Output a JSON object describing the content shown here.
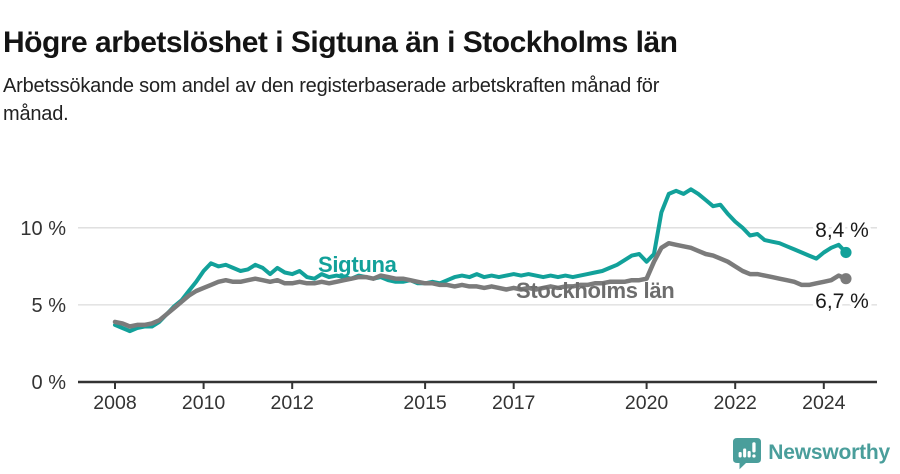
{
  "header": {
    "title": "Högre arbetslöshet i Sigtuna än i Stockholms län",
    "subtitle_lines": [
      "Arbetssökande som andel av den registerbaserade arbetskraften månad för",
      "månad."
    ]
  },
  "chart_data": {
    "type": "line",
    "title": "Högre arbetslöshet i Sigtuna än i Stockholms län",
    "xlabel": "",
    "ylabel": "",
    "unit": "%",
    "x_start": 2008,
    "x_step_years": 0.166667,
    "xlim": [
      2007.2,
      2025.2
    ],
    "ylim": [
      0,
      14
    ],
    "grid": "horizontal-y",
    "legend_position": "inline-labels",
    "x_ticks": [
      2008,
      2010,
      2012,
      2015,
      2017,
      2020,
      2022,
      2024
    ],
    "y_ticks": [
      0,
      5,
      10
    ],
    "y_tick_labels": [
      "0 %",
      "5 %",
      "10 %"
    ],
    "axis_color": "#333333",
    "grid_color": "#dcdcdc",
    "tick_label_color": "#333333",
    "end_label_color": "#1a1a1a",
    "series": [
      {
        "name": "Sigtuna",
        "color": "#12a19a",
        "end_label": "8,4 %",
        "end_value": 8.4,
        "values": [
          3.7,
          3.5,
          3.3,
          3.5,
          3.6,
          3.6,
          3.9,
          4.4,
          4.9,
          5.3,
          5.9,
          6.5,
          7.2,
          7.7,
          7.5,
          7.6,
          7.4,
          7.2,
          7.3,
          7.6,
          7.4,
          7.0,
          7.4,
          7.1,
          7.0,
          7.2,
          6.8,
          6.7,
          7.0,
          6.8,
          6.9,
          6.8,
          6.7,
          6.9,
          6.8,
          6.7,
          6.8,
          6.6,
          6.5,
          6.5,
          6.6,
          6.4,
          6.4,
          6.5,
          6.4,
          6.6,
          6.8,
          6.9,
          6.8,
          7.0,
          6.8,
          6.9,
          6.8,
          6.9,
          7.0,
          6.9,
          7.0,
          6.9,
          6.8,
          6.9,
          6.8,
          6.9,
          6.8,
          6.9,
          7.0,
          7.1,
          7.2,
          7.4,
          7.6,
          7.9,
          8.2,
          8.3,
          7.8,
          8.3,
          11.0,
          12.2,
          12.4,
          12.2,
          12.5,
          12.2,
          11.8,
          11.4,
          11.5,
          10.9,
          10.4,
          10.0,
          9.5,
          9.6,
          9.2,
          9.1,
          9.0,
          8.8,
          8.6,
          8.4,
          8.2,
          8.0,
          8.4,
          8.7,
          8.9,
          8.4
        ]
      },
      {
        "name": "Stockholms län",
        "color": "#7b7b7b",
        "label_color": "#6d6d6d",
        "end_label": "6,7 %",
        "end_value": 6.7,
        "values": [
          3.9,
          3.8,
          3.6,
          3.7,
          3.7,
          3.8,
          4.0,
          4.4,
          4.8,
          5.2,
          5.6,
          5.9,
          6.1,
          6.3,
          6.5,
          6.6,
          6.5,
          6.5,
          6.6,
          6.7,
          6.6,
          6.5,
          6.6,
          6.4,
          6.4,
          6.5,
          6.4,
          6.4,
          6.5,
          6.4,
          6.5,
          6.6,
          6.7,
          6.8,
          6.8,
          6.7,
          6.9,
          6.8,
          6.7,
          6.7,
          6.6,
          6.5,
          6.4,
          6.4,
          6.3,
          6.3,
          6.2,
          6.3,
          6.2,
          6.2,
          6.1,
          6.2,
          6.1,
          6.0,
          6.1,
          6.0,
          6.1,
          6.0,
          6.1,
          6.2,
          6.1,
          6.2,
          6.2,
          6.3,
          6.3,
          6.4,
          6.4,
          6.5,
          6.5,
          6.5,
          6.6,
          6.6,
          6.7,
          7.8,
          8.7,
          9.0,
          8.9,
          8.8,
          8.7,
          8.5,
          8.3,
          8.2,
          8.0,
          7.8,
          7.5,
          7.2,
          7.0,
          7.0,
          6.9,
          6.8,
          6.7,
          6.6,
          6.5,
          6.3,
          6.3,
          6.4,
          6.5,
          6.6,
          6.9,
          6.7
        ]
      }
    ]
  },
  "footer": {
    "brand": "Newsworthy",
    "brand_color": "#4a9e9b",
    "logo_icon": "newsworthy-speech-bubble-chart-icon"
  }
}
